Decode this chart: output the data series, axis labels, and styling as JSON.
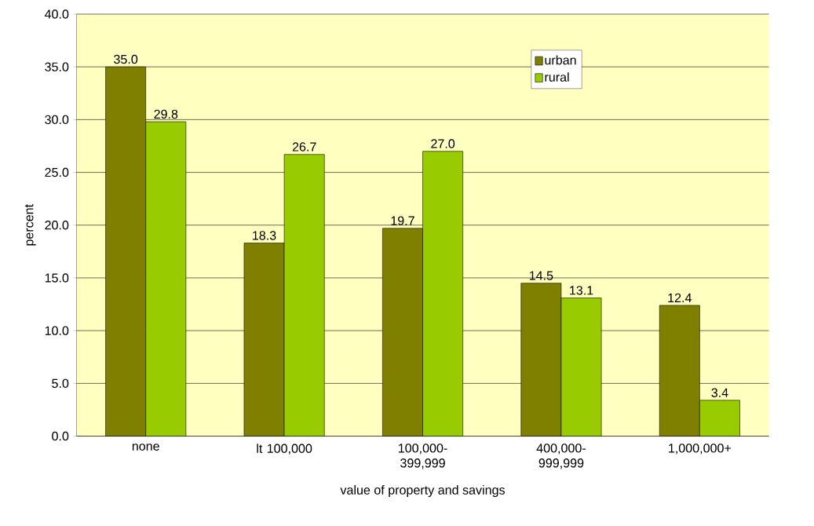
{
  "chart_data": {
    "type": "bar",
    "xlabel": "value of property and savings",
    "ylabel": "percent",
    "categories": [
      "none",
      "lt 100,000",
      "100,000-399,999",
      "400,000-999,999",
      "1,000,000+"
    ],
    "series": [
      {
        "name": "urban",
        "color": "#808000",
        "values": [
          35.0,
          18.3,
          19.7,
          14.5,
          12.4
        ],
        "value_labels": [
          "35.0",
          "18.3",
          "19.7",
          "14.5",
          "12.4"
        ]
      },
      {
        "name": "rural",
        "color": "#99cc00",
        "values": [
          29.8,
          26.7,
          27.0,
          13.1,
          3.4
        ],
        "value_labels": [
          "29.8",
          "26.7",
          "27.0",
          "13.1",
          "3.4"
        ]
      }
    ],
    "ylim": [
      0,
      40
    ],
    "yticks": [
      {
        "value": 0,
        "label": "0.0"
      },
      {
        "value": 5,
        "label": "5.0"
      },
      {
        "value": 10,
        "label": "10.0"
      },
      {
        "value": 15,
        "label": "15.0"
      },
      {
        "value": 20,
        "label": "20.0"
      },
      {
        "value": 25,
        "label": "25.0"
      },
      {
        "value": 30,
        "label": "30.0"
      },
      {
        "value": 35,
        "label": "35.0"
      },
      {
        "value": 40,
        "label": "40.0"
      }
    ],
    "grid": "y",
    "legend": "top right"
  }
}
